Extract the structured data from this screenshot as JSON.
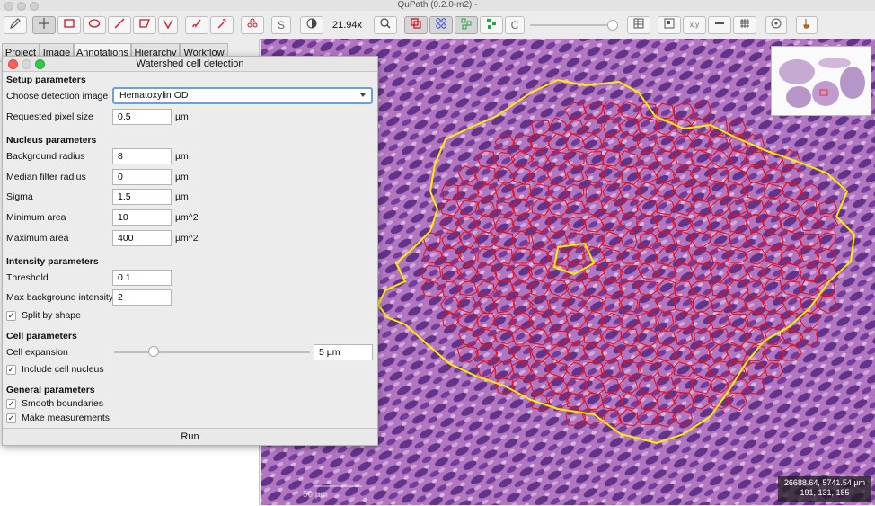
{
  "app": {
    "title": "QuPath (0.2.0-m2) -"
  },
  "toolbar": {
    "zoom_label": "21.94x",
    "s_label": "S",
    "c_label": "C",
    "xy_label": "x,y",
    "tools": [
      "move-icon",
      "rectangle-icon",
      "ellipse-icon",
      "line-icon",
      "polygon-icon",
      "polyline-icon",
      "brush-icon",
      "wand-icon",
      "points-icon"
    ]
  },
  "left_panel": {
    "tabs": [
      "Project",
      "Image",
      "Annotations",
      "Hierarchy",
      "Workflow"
    ]
  },
  "dialog": {
    "title": "Watershed cell detection",
    "setup_title": "Setup parameters",
    "detection_image_label": "Choose detection image",
    "detection_image_value": "Hematoxylin OD",
    "pixel_size_label": "Requested pixel size",
    "pixel_size_value": "0.5",
    "pixel_size_unit": "µm",
    "nucleus_title": "Nucleus parameters",
    "background_radius_label": "Background radius",
    "background_radius_value": "8",
    "background_radius_unit": "µm",
    "median_filter_label": "Median filter radius",
    "median_filter_value": "0",
    "median_filter_unit": "µm",
    "sigma_label": "Sigma",
    "sigma_value": "1.5",
    "sigma_unit": "µm",
    "min_area_label": "Minimum area",
    "min_area_value": "10",
    "min_area_unit": "µm^2",
    "max_area_label": "Maximum area",
    "max_area_value": "400",
    "max_area_unit": "µm^2",
    "intensity_title": "Intensity parameters",
    "threshold_label": "Threshold",
    "threshold_value": "0.1",
    "max_bg_label": "Max background intensity",
    "max_bg_value": "2",
    "split_label": "Split by shape",
    "split_checked": true,
    "cell_title": "Cell parameters",
    "cell_expansion_label": "Cell expansion",
    "cell_expansion_value": "5 µm",
    "cell_expansion_level": 0.2,
    "include_nucleus_label": "Include cell nucleus",
    "include_nucleus_checked": true,
    "general_title": "General parameters",
    "smooth_label": "Smooth boundaries",
    "smooth_checked": true,
    "measure_label": "Make measurements",
    "measure_checked": true,
    "run_label": "Run"
  },
  "viewer": {
    "coords_line1": "26688.64, 5741.54 µm",
    "coords_line2": "191, 131, 185",
    "scalebar_label": "50 µm",
    "annotation_color": "#ffea00",
    "cell_color": "#e8101e",
    "tissue_color": "#9a4fb0"
  }
}
